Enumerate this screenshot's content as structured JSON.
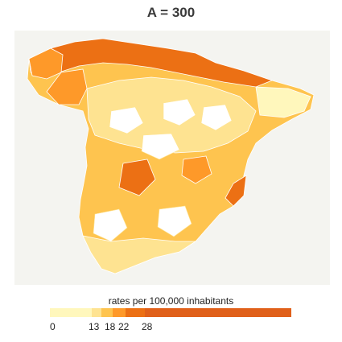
{
  "title": {
    "prefix": "A = ",
    "value": "300"
  },
  "legend": {
    "title": "rates per 100,000 inhabitants",
    "labels": [
      "0",
      "13",
      "18",
      "22",
      "28"
    ],
    "colors": [
      "#fff7bc",
      "#fee391",
      "#fec44f",
      "#fe9929",
      "#ec7014",
      "#e0601a"
    ]
  },
  "map": {
    "colors": {
      "panel_bg": "#f4f4f0",
      "border": "#ffffff",
      "light": "#fff7bc",
      "pale": "#fee391",
      "mid": "#fec44f",
      "orange": "#fe9929",
      "dark": "#ec7014",
      "darkest": "#d95f0e"
    }
  }
}
